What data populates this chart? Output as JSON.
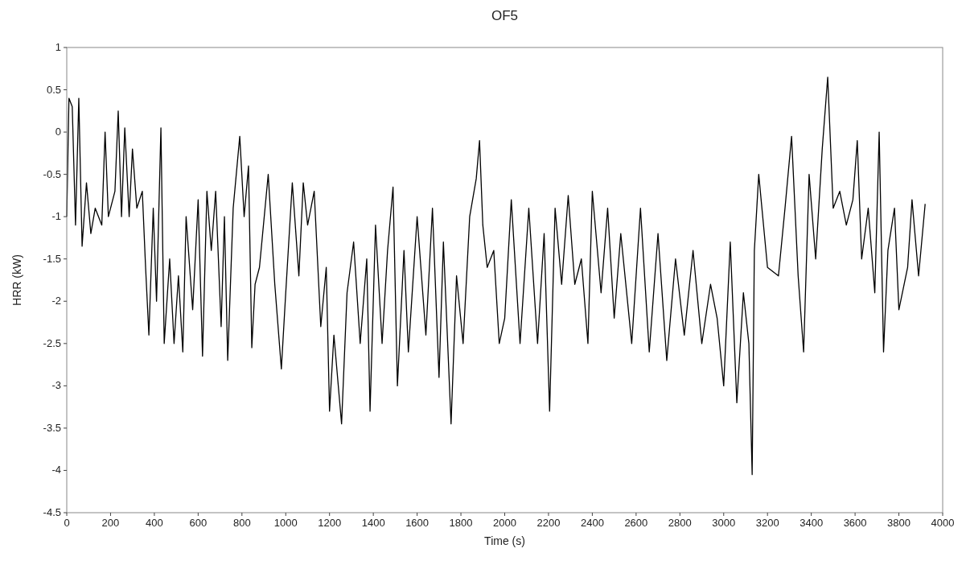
{
  "chart_data": {
    "type": "line",
    "title": "OF5",
    "xlabel": "Time (s)",
    "ylabel": "HRR (kW)",
    "xlim": [
      0,
      4000
    ],
    "xticks": [
      0,
      200,
      400,
      600,
      800,
      1000,
      1200,
      1400,
      1600,
      1800,
      2000,
      2200,
      2400,
      2600,
      2800,
      3000,
      3200,
      3400,
      3600,
      3800,
      4000
    ],
    "ylim": [
      -4.5,
      1
    ],
    "yticks": [
      -4.5,
      -4,
      -3.5,
      -3,
      -2.5,
      -2,
      -1.5,
      -1,
      -0.5,
      0,
      0.5,
      1
    ],
    "grid": false,
    "marker": "none",
    "line_style": "solid",
    "series": [
      {
        "color": "#000000",
        "x": [
          0,
          10,
          25,
          40,
          55,
          70,
          90,
          110,
          130,
          160,
          175,
          190,
          220,
          235,
          250,
          265,
          285,
          300,
          320,
          345,
          360,
          375,
          395,
          410,
          430,
          445,
          470,
          490,
          510,
          530,
          545,
          575,
          600,
          620,
          640,
          660,
          680,
          705,
          720,
          735,
          760,
          790,
          810,
          830,
          845,
          860,
          880,
          920,
          950,
          980,
          1000,
          1030,
          1060,
          1080,
          1100,
          1130,
          1160,
          1185,
          1200,
          1220,
          1255,
          1280,
          1310,
          1340,
          1370,
          1385,
          1410,
          1440,
          1465,
          1490,
          1510,
          1540,
          1560,
          1600,
          1640,
          1670,
          1700,
          1720,
          1755,
          1780,
          1810,
          1840,
          1870,
          1885,
          1900,
          1920,
          1950,
          1975,
          2000,
          2030,
          2070,
          2110,
          2150,
          2180,
          2205,
          2230,
          2260,
          2290,
          2320,
          2350,
          2380,
          2400,
          2440,
          2470,
          2500,
          2530,
          2580,
          2620,
          2660,
          2700,
          2740,
          2780,
          2820,
          2860,
          2900,
          2940,
          2970,
          3000,
          3030,
          3060,
          3090,
          3115,
          3130,
          3140,
          3160,
          3200,
          3250,
          3280,
          3310,
          3340,
          3365,
          3390,
          3420,
          3450,
          3475,
          3500,
          3530,
          3560,
          3590,
          3610,
          3630,
          3660,
          3690,
          3710,
          3730,
          3750,
          3780,
          3800,
          3840,
          3860,
          3890,
          3920
        ],
        "values": [
          -1.0,
          0.4,
          0.3,
          -1.1,
          0.4,
          -1.35,
          -0.6,
          -1.2,
          -0.9,
          -1.1,
          0.0,
          -1.0,
          -0.7,
          0.25,
          -1.0,
          0.05,
          -1.0,
          -0.2,
          -0.9,
          -0.7,
          -1.6,
          -2.4,
          -0.9,
          -2.0,
          0.05,
          -2.5,
          -1.5,
          -2.5,
          -1.7,
          -2.6,
          -1.0,
          -2.1,
          -0.8,
          -2.65,
          -0.7,
          -1.4,
          -0.7,
          -2.3,
          -1.0,
          -2.7,
          -0.9,
          -0.05,
          -1.0,
          -0.4,
          -2.55,
          -1.8,
          -1.6,
          -0.5,
          -1.8,
          -2.8,
          -1.9,
          -0.6,
          -1.7,
          -0.6,
          -1.1,
          -0.7,
          -2.3,
          -1.6,
          -3.3,
          -2.4,
          -3.45,
          -1.9,
          -1.3,
          -2.5,
          -1.5,
          -3.3,
          -1.1,
          -2.5,
          -1.4,
          -0.65,
          -3.0,
          -1.4,
          -2.6,
          -1.0,
          -2.4,
          -0.9,
          -2.9,
          -1.3,
          -3.45,
          -1.7,
          -2.5,
          -1.0,
          -0.55,
          -0.1,
          -1.1,
          -1.6,
          -1.4,
          -2.5,
          -2.2,
          -0.8,
          -2.5,
          -0.9,
          -2.5,
          -1.2,
          -3.3,
          -0.9,
          -1.8,
          -0.75,
          -1.8,
          -1.5,
          -2.5,
          -0.7,
          -1.9,
          -0.9,
          -2.2,
          -1.2,
          -2.5,
          -0.9,
          -2.6,
          -1.2,
          -2.7,
          -1.5,
          -2.4,
          -1.4,
          -2.5,
          -1.8,
          -2.2,
          -3.0,
          -1.3,
          -3.2,
          -1.9,
          -2.5,
          -4.05,
          -1.4,
          -0.5,
          -1.6,
          -1.7,
          -0.9,
          -0.05,
          -1.7,
          -2.6,
          -0.5,
          -1.5,
          -0.2,
          0.65,
          -0.9,
          -0.7,
          -1.1,
          -0.8,
          -0.1,
          -1.5,
          -0.9,
          -1.9,
          0.0,
          -2.6,
          -1.4,
          -0.9,
          -2.1,
          -1.6,
          -0.8,
          -1.7,
          -0.85
        ]
      }
    ]
  }
}
